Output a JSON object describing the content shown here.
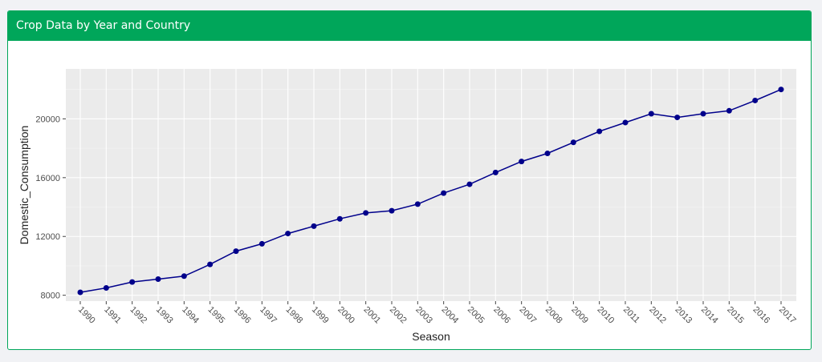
{
  "panel": {
    "title": "Crop Data by Year and Country"
  },
  "colors": {
    "header": "#00a65a",
    "plot_background": "#ebebeb",
    "series": "#00008b"
  },
  "chart_data": {
    "type": "line",
    "title": "",
    "xlabel": "Season",
    "ylabel": "Domestic_Consumption",
    "x": [
      "1990",
      "1991",
      "1992",
      "1993",
      "1994",
      "1995",
      "1996",
      "1997",
      "1998",
      "1999",
      "2000",
      "2001",
      "2002",
      "2003",
      "2004",
      "2005",
      "2006",
      "2007",
      "2008",
      "2009",
      "2010",
      "2011",
      "2012",
      "2013",
      "2014",
      "2015",
      "2016",
      "2017"
    ],
    "values": [
      8200,
      8500,
      8900,
      9100,
      9300,
      10100,
      11000,
      11500,
      12200,
      12700,
      13200,
      13600,
      13750,
      14200,
      14950,
      15550,
      16350,
      17100,
      17650,
      18400,
      19150,
      19750,
      20350,
      20100,
      20350,
      20550,
      21250,
      22000
    ],
    "ylim": [
      7600,
      23400
    ],
    "yticks": [
      8000,
      12000,
      16000,
      20000
    ],
    "ytick_labels": [
      "8000",
      "12000",
      "16000",
      "20000"
    ],
    "grid": true,
    "markers": true
  }
}
